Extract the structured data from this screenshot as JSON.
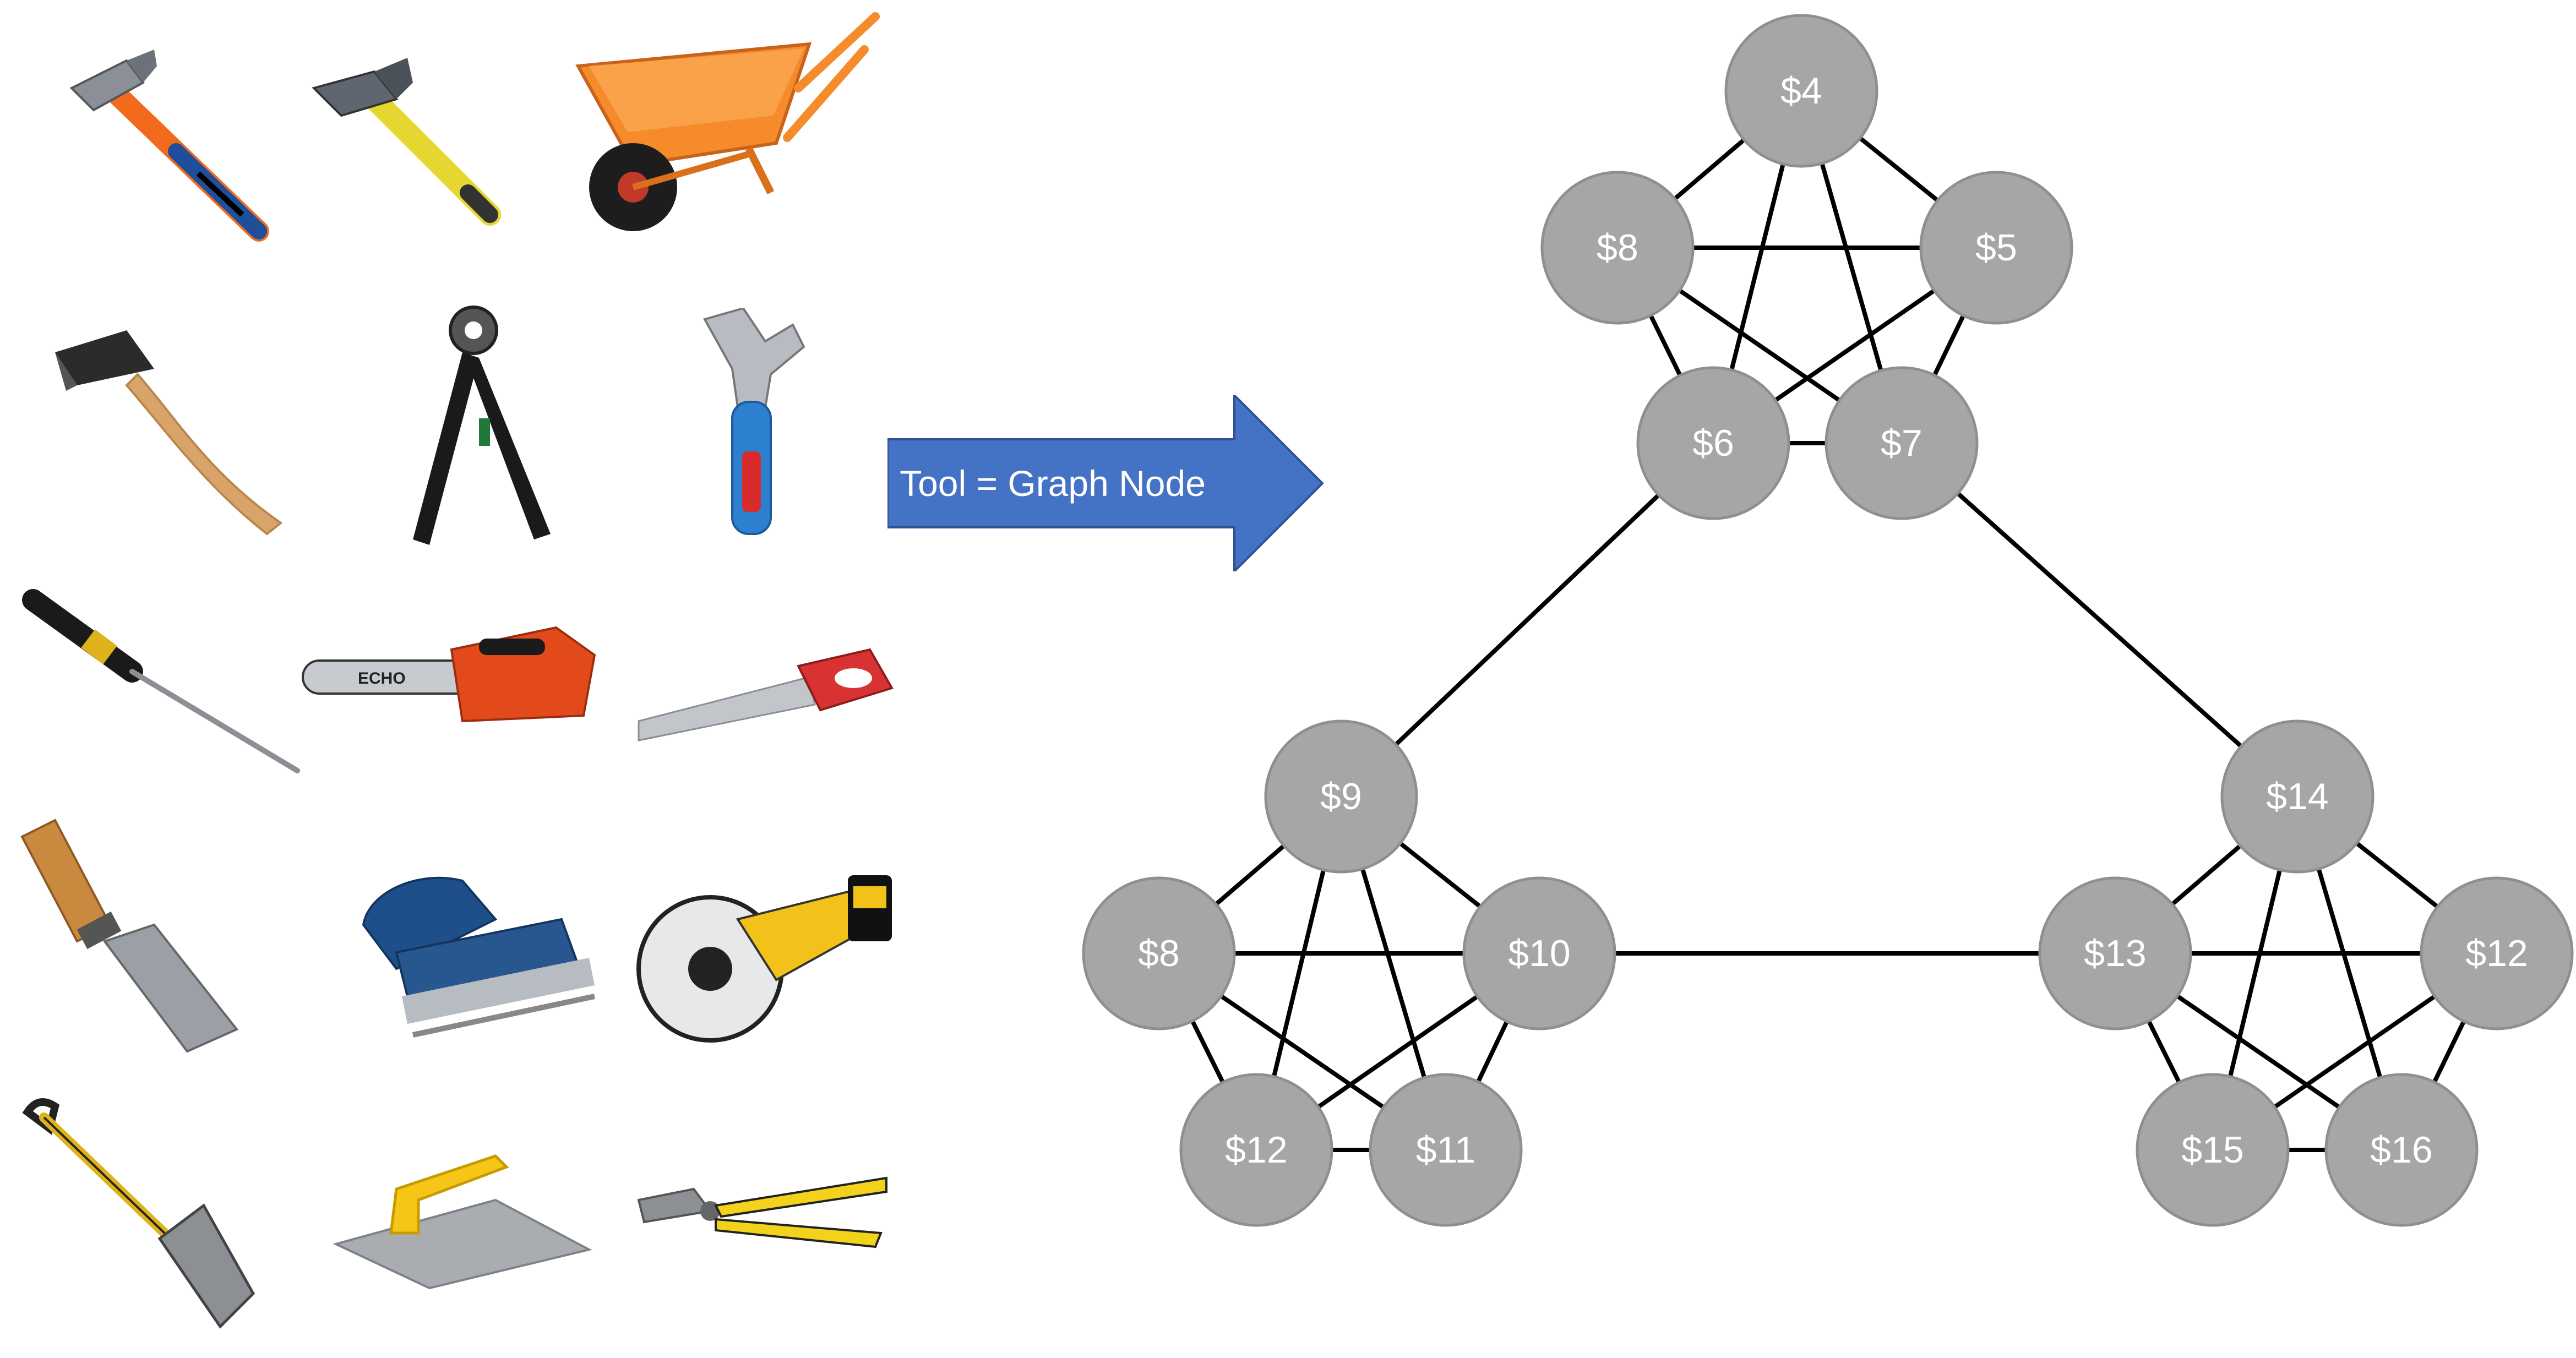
{
  "tools": [
    {
      "name": "hammer"
    },
    {
      "name": "pickaxe-hammer"
    },
    {
      "name": "wheelbarrow"
    },
    {
      "name": "axe"
    },
    {
      "name": "hole-punch-pliers"
    },
    {
      "name": "adjustable-wrench"
    },
    {
      "name": "screwdriver"
    },
    {
      "name": "chainsaw"
    },
    {
      "name": "hand-saw"
    },
    {
      "name": "chisel"
    },
    {
      "name": "electric-planer"
    },
    {
      "name": "circular-saw"
    },
    {
      "name": "spade"
    },
    {
      "name": "trowel"
    },
    {
      "name": "pliers"
    }
  ],
  "arrow": {
    "label": "Tool = Graph Node",
    "color": "#4472c4"
  },
  "graph": {
    "node_color": "#a6a6a6",
    "node_border": "#8f8f8f",
    "edge_color": "#000000",
    "nodes": [
      {
        "id": "t4",
        "label": "$4"
      },
      {
        "id": "t8",
        "label": "$8"
      },
      {
        "id": "t5",
        "label": "$5"
      },
      {
        "id": "t6",
        "label": "$6"
      },
      {
        "id": "t7",
        "label": "$7"
      },
      {
        "id": "l9",
        "label": "$9"
      },
      {
        "id": "l8",
        "label": "$8"
      },
      {
        "id": "l10",
        "label": "$10"
      },
      {
        "id": "l12",
        "label": "$12"
      },
      {
        "id": "l11",
        "label": "$11"
      },
      {
        "id": "r14",
        "label": "$14"
      },
      {
        "id": "r13",
        "label": "$13"
      },
      {
        "id": "r12",
        "label": "$12"
      },
      {
        "id": "r15",
        "label": "$15"
      },
      {
        "id": "r16",
        "label": "$16"
      }
    ],
    "edges": [
      [
        "t4",
        "t8"
      ],
      [
        "t4",
        "t5"
      ],
      [
        "t4",
        "t6"
      ],
      [
        "t4",
        "t7"
      ],
      [
        "t8",
        "t5"
      ],
      [
        "t8",
        "t6"
      ],
      [
        "t8",
        "t7"
      ],
      [
        "t5",
        "t6"
      ],
      [
        "t5",
        "t7"
      ],
      [
        "t6",
        "t7"
      ],
      [
        "l9",
        "l8"
      ],
      [
        "l9",
        "l10"
      ],
      [
        "l9",
        "l12"
      ],
      [
        "l9",
        "l11"
      ],
      [
        "l8",
        "l10"
      ],
      [
        "l8",
        "l12"
      ],
      [
        "l8",
        "l11"
      ],
      [
        "l10",
        "l12"
      ],
      [
        "l10",
        "l11"
      ],
      [
        "l12",
        "l11"
      ],
      [
        "r14",
        "r13"
      ],
      [
        "r14",
        "r12"
      ],
      [
        "r14",
        "r15"
      ],
      [
        "r14",
        "r16"
      ],
      [
        "r13",
        "r12"
      ],
      [
        "r13",
        "r15"
      ],
      [
        "r13",
        "r16"
      ],
      [
        "r12",
        "r15"
      ],
      [
        "r12",
        "r16"
      ],
      [
        "r15",
        "r16"
      ],
      [
        "t6",
        "l9"
      ],
      [
        "t7",
        "r14"
      ],
      [
        "l10",
        "r13"
      ]
    ]
  }
}
